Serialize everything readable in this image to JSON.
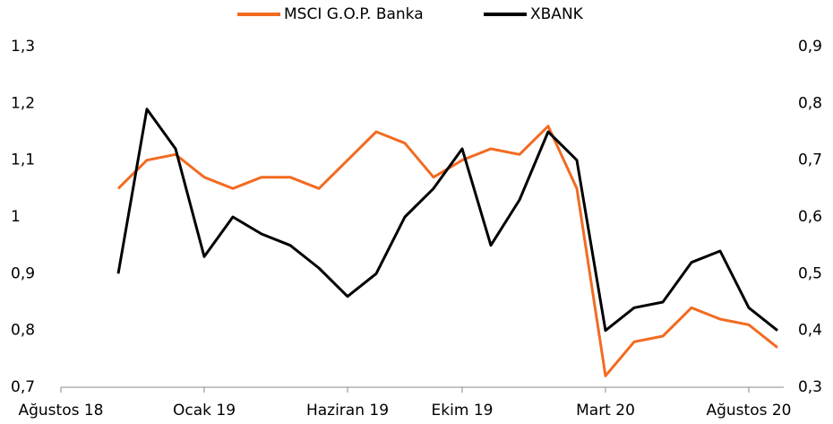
{
  "chart_data": {
    "type": "line",
    "x": [
      "2018-10",
      "2018-11",
      "2018-12",
      "2019-01",
      "2019-02",
      "2019-03",
      "2019-04",
      "2019-05",
      "2019-06",
      "2019-07",
      "2019-08",
      "2019-09",
      "2019-10",
      "2019-11",
      "2019-12",
      "2020-01",
      "2020-02",
      "2020-03",
      "2020-04",
      "2020-05",
      "2020-06",
      "2020-07",
      "2020-08",
      "2020-09"
    ],
    "series": [
      {
        "name": "MSCI G.O.P. Banka",
        "color": "#f26b21",
        "axis": "y",
        "values": [
          1.05,
          1.1,
          1.11,
          1.07,
          1.05,
          1.07,
          1.07,
          1.05,
          1.1,
          1.15,
          1.13,
          1.07,
          1.1,
          1.12,
          1.11,
          1.16,
          1.05,
          0.72,
          0.78,
          0.79,
          0.84,
          0.82,
          0.81,
          0.77
        ]
      },
      {
        "name": "XBANK",
        "color": "#000000",
        "axis": "y2",
        "values": [
          0.5,
          0.79,
          0.72,
          0.53,
          0.6,
          0.57,
          0.55,
          0.51,
          0.46,
          0.5,
          0.6,
          0.65,
          0.72,
          0.55,
          0.63,
          0.75,
          0.7,
          0.4,
          0.44,
          0.45,
          0.52,
          0.54,
          0.44,
          0.4
        ]
      }
    ],
    "xlim": [
      "2018-08",
      "2020-09"
    ],
    "xticks": [
      {
        "value": "2018-08",
        "label": "Ağustos 18"
      },
      {
        "value": "2019-01",
        "label": "Ocak 19"
      },
      {
        "value": "2019-06",
        "label": "Haziran 19"
      },
      {
        "value": "2019-10",
        "label": "Ekim 19"
      },
      {
        "value": "2020-03",
        "label": "Mart 20"
      },
      {
        "value": "2020-08",
        "label": "Ağustos 20"
      }
    ],
    "ylim": [
      0.7,
      1.3
    ],
    "yticks": [
      {
        "value": 0.7,
        "label": "0,7"
      },
      {
        "value": 0.8,
        "label": "0,8"
      },
      {
        "value": 0.9,
        "label": "0,9"
      },
      1,
      {
        "value": 1.1,
        "label": "1,1"
      },
      {
        "value": 1.2,
        "label": "1,2"
      },
      {
        "value": 1.3,
        "label": "1,3"
      }
    ],
    "y2lim": [
      0.3,
      0.9
    ],
    "y2ticks": [
      {
        "value": 0.3,
        "label": "0,3"
      },
      {
        "value": 0.4,
        "label": "0,4"
      },
      {
        "value": 0.5,
        "label": "0,5"
      },
      {
        "value": 0.6,
        "label": "0,6"
      },
      {
        "value": 0.7,
        "label": "0,7"
      },
      {
        "value": 0.8,
        "label": "0,8"
      },
      {
        "value": 0.9,
        "label": "0,9"
      }
    ],
    "legend": "top"
  }
}
